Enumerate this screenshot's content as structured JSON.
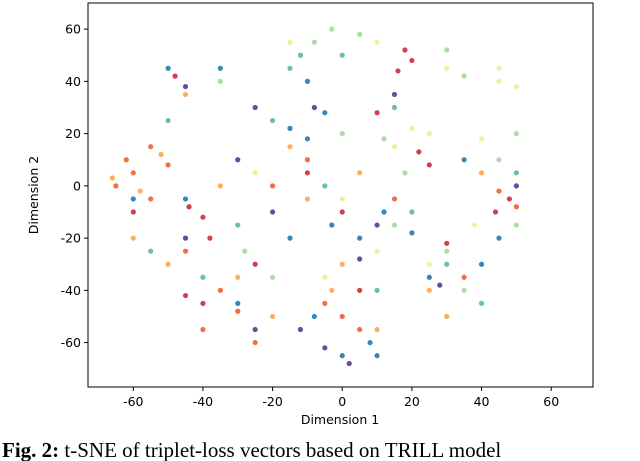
{
  "chart_data": {
    "type": "scatter",
    "xlabel": "Dimension 1",
    "ylabel": "Dimension 2",
    "caption_label": "Fig. 2:",
    "caption": "t-SNE of triplet-loss vectors based on TRILL model",
    "xlim": [
      -73,
      72
    ],
    "ylim": [
      -77,
      70
    ],
    "xticks": [
      -60,
      -40,
      -20,
      0,
      20,
      40,
      60
    ],
    "yticks": [
      -60,
      -40,
      -20,
      0,
      20,
      40,
      60
    ],
    "series": [
      {
        "color": "#d53e4f",
        "x": [
          18,
          20,
          16,
          -48,
          -40,
          -38,
          -44,
          22,
          25,
          -40,
          -45,
          5,
          0,
          -25,
          48,
          44,
          10,
          -10,
          30,
          -60
        ],
        "values": [
          52,
          48,
          44,
          42,
          -12,
          -20,
          -8,
          13,
          8,
          -45,
          -42,
          -40,
          -10,
          -30,
          -5,
          -10,
          28,
          5,
          -22,
          -10
        ]
      },
      {
        "color": "#f46d43",
        "x": [
          -60,
          -65,
          -55,
          -62,
          -50,
          -35,
          -30,
          -40,
          -5,
          0,
          5,
          -20,
          -10,
          45,
          50,
          -55,
          -25,
          -45,
          15,
          35
        ],
        "values": [
          5,
          0,
          -5,
          10,
          8,
          -40,
          -48,
          -55,
          -45,
          -50,
          -55,
          0,
          10,
          -2,
          -8,
          15,
          -60,
          -25,
          -5,
          -35
        ]
      },
      {
        "color": "#fdae61",
        "x": [
          -58,
          -52,
          -66,
          -30,
          -20,
          -3,
          10,
          -15,
          5,
          40,
          -45,
          -10,
          -50,
          25,
          0,
          -35,
          -60,
          30
        ],
        "values": [
          -2,
          12,
          3,
          -35,
          -50,
          -40,
          -55,
          15,
          5,
          5,
          35,
          -5,
          -30,
          -40,
          -30,
          0,
          -20,
          -50
        ]
      },
      {
        "color": "#e6f598",
        "x": [
          10,
          30,
          45,
          50,
          20,
          15,
          25,
          40,
          38,
          -25,
          0,
          10,
          45,
          -5,
          25,
          -15
        ],
        "values": [
          55,
          45,
          40,
          38,
          22,
          15,
          20,
          18,
          -15,
          5,
          -5,
          -25,
          45,
          -35,
          -30,
          55
        ]
      },
      {
        "color": "#abdda4",
        "x": [
          -8,
          -3,
          5,
          30,
          35,
          12,
          18,
          45,
          50,
          30,
          35,
          -20,
          -35,
          0,
          15,
          -28,
          50
        ],
        "values": [
          55,
          60,
          58,
          52,
          42,
          18,
          5,
          10,
          20,
          -25,
          -40,
          -35,
          40,
          20,
          -15,
          -25,
          -15
        ]
      },
      {
        "color": "#66c2a5",
        "x": [
          -12,
          -15,
          0,
          -20,
          15,
          20,
          40,
          30,
          -40,
          -5,
          50,
          -50,
          10,
          -30,
          -55
        ],
        "values": [
          50,
          45,
          50,
          25,
          30,
          -10,
          -45,
          -30,
          -35,
          0,
          5,
          25,
          -40,
          -15,
          -25
        ]
      },
      {
        "color": "#3288bd",
        "x": [
          -50,
          -35,
          -10,
          -15,
          -10,
          -5,
          -3,
          5,
          12,
          20,
          -15,
          -8,
          0,
          8,
          25,
          40,
          35,
          45,
          -30,
          -45,
          -60,
          10
        ],
        "values": [
          45,
          45,
          40,
          22,
          18,
          28,
          -15,
          -20,
          -10,
          -18,
          -20,
          -50,
          -65,
          -60,
          -35,
          -30,
          10,
          -20,
          -45,
          -5,
          -5,
          -65
        ]
      },
      {
        "color": "#5e4fa2",
        "x": [
          -45,
          -25,
          -8,
          5,
          10,
          -5,
          -12,
          2,
          28,
          -25,
          -30,
          50,
          -20,
          15,
          -45
        ],
        "values": [
          38,
          30,
          30,
          -28,
          -15,
          -62,
          -55,
          -68,
          -38,
          -55,
          10,
          0,
          -10,
          35,
          -20
        ]
      }
    ]
  }
}
